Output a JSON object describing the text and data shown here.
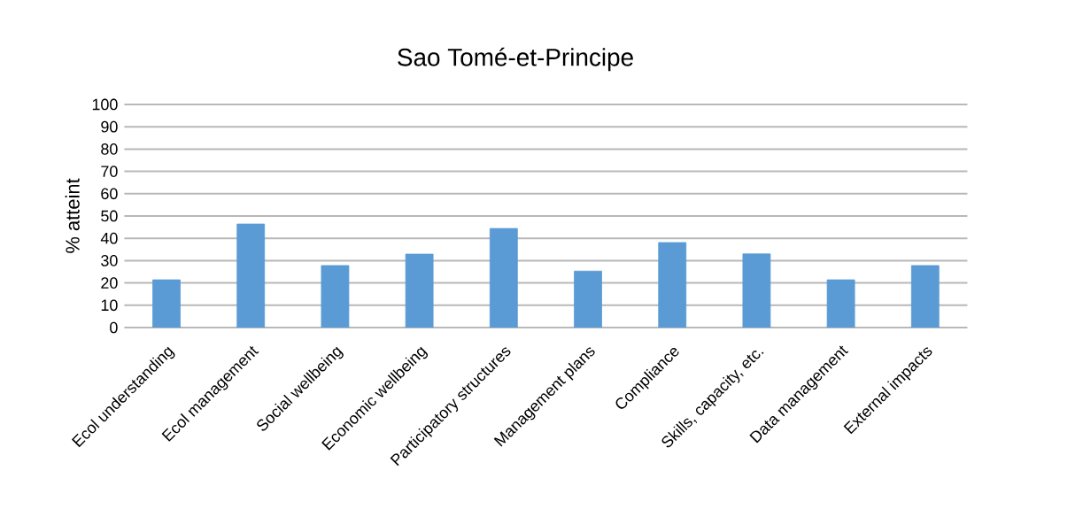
{
  "chart_data": {
    "type": "bar",
    "title": "Sao Tomé-et-Principe",
    "ylabel": "% atteint",
    "categories": [
      "Ecol understanding",
      "Ecol management",
      "Social wellbeing",
      "Economic wellbeing",
      "Participatory structures",
      "Management plans",
      "Compliance",
      "Skills, capacity, etc.",
      "Data management",
      "External impacts"
    ],
    "values": [
      21.4,
      46.4,
      27.8,
      32.9,
      44.4,
      25.3,
      38.1,
      33.0,
      21.4,
      27.8
    ],
    "color": "#5b9bd5",
    "ylim": [
      0,
      100
    ],
    "yticks": [
      0,
      10,
      20,
      30,
      40,
      50,
      60,
      70,
      80,
      90,
      100
    ],
    "grid": "y"
  }
}
